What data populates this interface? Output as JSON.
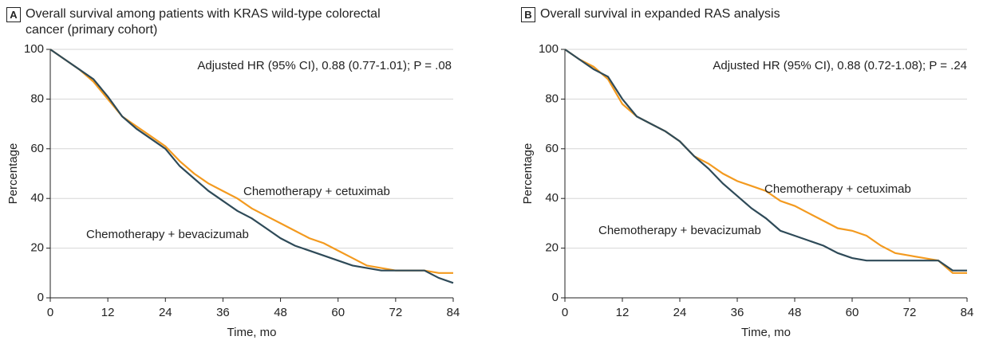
{
  "chart_data": [
    {
      "type": "line",
      "panel": "A",
      "title": "Overall survival among patients with KRAS wild-type colorectal cancer (primary cohort)",
      "annotation": "Adjusted HR (95% CI), 0.88 (0.77-1.01); P = .08",
      "xlabel": "Time, mo",
      "ylabel": "Percentage",
      "x": [
        0,
        3,
        6,
        9,
        12,
        15,
        18,
        21,
        24,
        27,
        30,
        33,
        36,
        39,
        42,
        45,
        48,
        51,
        54,
        57,
        60,
        63,
        66,
        69,
        72,
        75,
        78,
        81,
        84
      ],
      "xlim": [
        0,
        84
      ],
      "xticks": [
        0,
        12,
        24,
        36,
        48,
        60,
        72,
        84
      ],
      "ylim": [
        0,
        100
      ],
      "yticks": [
        0,
        20,
        40,
        60,
        80,
        100
      ],
      "grid": true,
      "series": [
        {
          "name": "Chemotherapy + cetuximab",
          "color": "#f39a1f",
          "values": [
            100,
            96,
            92,
            87,
            80,
            73,
            69,
            65,
            61,
            55,
            50,
            46,
            43,
            40,
            36,
            33,
            30,
            27,
            24,
            22,
            19,
            16,
            13,
            12,
            11,
            11,
            11,
            10,
            10
          ]
        },
        {
          "name": "Chemotherapy + bevacizumab",
          "color": "#2e4a58",
          "values": [
            100,
            96,
            92,
            88,
            81,
            73,
            68,
            64,
            60,
            53,
            48,
            43,
            39,
            35,
            32,
            28,
            24,
            21,
            19,
            17,
            15,
            13,
            12,
            11,
            11,
            11,
            11,
            8,
            6
          ]
        }
      ]
    },
    {
      "type": "line",
      "panel": "B",
      "title": "Overall survival in expanded RAS analysis",
      "annotation": "Adjusted HR (95% CI), 0.88 (0.72-1.08); P = .24",
      "xlabel": "Time, mo",
      "ylabel": "Percentage",
      "x": [
        0,
        3,
        6,
        9,
        12,
        15,
        18,
        21,
        24,
        27,
        30,
        33,
        36,
        39,
        42,
        45,
        48,
        51,
        54,
        57,
        60,
        63,
        66,
        69,
        72,
        75,
        78,
        81,
        84
      ],
      "xlim": [
        0,
        84
      ],
      "xticks": [
        0,
        12,
        24,
        36,
        48,
        60,
        72,
        84
      ],
      "ylim": [
        0,
        100
      ],
      "yticks": [
        0,
        20,
        40,
        60,
        80,
        100
      ],
      "grid": true,
      "series": [
        {
          "name": "Chemotherapy + cetuximab",
          "color": "#f39a1f",
          "values": [
            100,
            96,
            93,
            88,
            78,
            73,
            70,
            67,
            63,
            57,
            54,
            50,
            47,
            45,
            43,
            39,
            37,
            34,
            31,
            28,
            27,
            25,
            21,
            18,
            17,
            16,
            15,
            10,
            10
          ]
        },
        {
          "name": "Chemotherapy + bevacizumab",
          "color": "#2e4a58",
          "values": [
            100,
            96,
            92,
            89,
            80,
            73,
            70,
            67,
            63,
            57,
            52,
            46,
            41,
            36,
            32,
            27,
            25,
            23,
            21,
            18,
            16,
            15,
            15,
            15,
            15,
            15,
            15,
            11,
            11
          ]
        }
      ]
    }
  ]
}
